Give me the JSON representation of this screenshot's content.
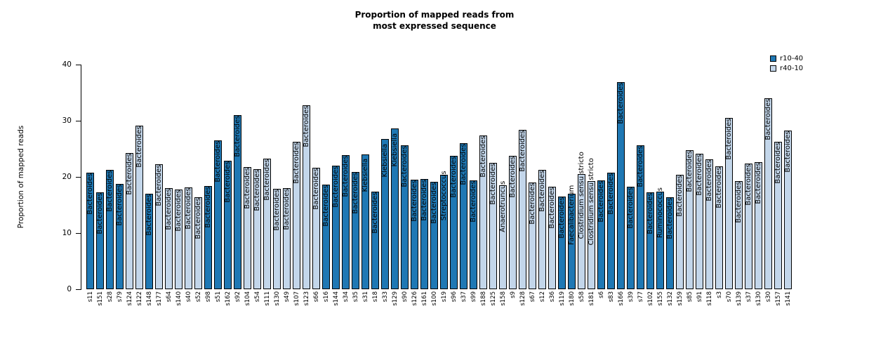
{
  "title": {
    "line1": "Proportion of mapped reads from",
    "line2": "most expressed sequence"
  },
  "y_axis": {
    "label": "Proportion of mapped reads",
    "ticks": [
      0,
      10,
      20,
      30,
      40
    ],
    "min": 0,
    "max": 40
  },
  "legend": {
    "items": [
      {
        "label": "r10-40",
        "color": "#1f78b4"
      },
      {
        "label": "r40-10",
        "color": "#c3d6ea"
      }
    ]
  },
  "chart_data": {
    "type": "bar",
    "title": "Proportion of mapped reads from most expressed sequence",
    "ylabel": "Proportion of mapped reads",
    "ylim": [
      0,
      40
    ],
    "grid": false,
    "legend_position": "top-right",
    "series_colors": {
      "r10-40": "#1f78b4",
      "r40-10": "#c3d6ea"
    },
    "bars": [
      {
        "sample": "s11",
        "value": 20.7,
        "group": "r10-40",
        "taxon": "Bacteroides"
      },
      {
        "sample": "s151",
        "value": 17.2,
        "group": "r10-40",
        "taxon": "Bacteroides"
      },
      {
        "sample": "s28",
        "value": 21.2,
        "group": "r10-40",
        "taxon": "Bacteroides"
      },
      {
        "sample": "s79",
        "value": 18.8,
        "group": "r10-40",
        "taxon": "Bacteroides"
      },
      {
        "sample": "s124",
        "value": 24.2,
        "group": "r40-10",
        "taxon": "Bacteroides"
      },
      {
        "sample": "s122",
        "value": 29.1,
        "group": "r40-10",
        "taxon": "Bacteroides"
      },
      {
        "sample": "s148",
        "value": 17.0,
        "group": "r10-40",
        "taxon": "Bacteroides"
      },
      {
        "sample": "s177",
        "value": 22.3,
        "group": "r40-10",
        "taxon": "Bacteroides"
      },
      {
        "sample": "s64",
        "value": 18.0,
        "group": "r40-10",
        "taxon": "Bacteroides"
      },
      {
        "sample": "s140",
        "value": 17.8,
        "group": "r40-10",
        "taxon": "Bacteroides"
      },
      {
        "sample": "s40",
        "value": 18.1,
        "group": "r40-10",
        "taxon": "Bacteroides"
      },
      {
        "sample": "s52",
        "value": 16.4,
        "group": "r40-10",
        "taxon": "Bacteroides"
      },
      {
        "sample": "s98",
        "value": 18.4,
        "group": "r10-40",
        "taxon": "Bacteroides"
      },
      {
        "sample": "s51",
        "value": 26.5,
        "group": "r10-40",
        "taxon": "Bacteroides"
      },
      {
        "sample": "s162",
        "value": 22.9,
        "group": "r10-40",
        "taxon": "Bacteroides"
      },
      {
        "sample": "s92",
        "value": 31.0,
        "group": "r10-40",
        "taxon": "Bacteroides"
      },
      {
        "sample": "s104",
        "value": 21.8,
        "group": "r40-10",
        "taxon": "Bacteroides"
      },
      {
        "sample": "s54",
        "value": 21.4,
        "group": "r40-10",
        "taxon": "Bacteroides"
      },
      {
        "sample": "s111",
        "value": 23.3,
        "group": "r40-10",
        "taxon": "Bacteroides"
      },
      {
        "sample": "s130",
        "value": 17.9,
        "group": "r40-10",
        "taxon": "Bacteroides"
      },
      {
        "sample": "s49",
        "value": 18.0,
        "group": "r40-10",
        "taxon": "Bacteroides"
      },
      {
        "sample": "s107",
        "value": 26.2,
        "group": "r40-10",
        "taxon": "Bacteroides"
      },
      {
        "sample": "s123",
        "value": 32.8,
        "group": "r40-10",
        "taxon": "Bacteroides"
      },
      {
        "sample": "s66",
        "value": 21.6,
        "group": "r40-10",
        "taxon": "Bacteroides"
      },
      {
        "sample": "s16",
        "value": 18.6,
        "group": "r10-40",
        "taxon": "Bacteroides"
      },
      {
        "sample": "s144",
        "value": 22.0,
        "group": "r10-40",
        "taxon": "Bacteroides"
      },
      {
        "sample": "s34",
        "value": 23.9,
        "group": "r10-40",
        "taxon": "Bacteroides"
      },
      {
        "sample": "s35",
        "value": 20.9,
        "group": "r10-40",
        "taxon": "Bacteroides"
      },
      {
        "sample": "s31",
        "value": 24.0,
        "group": "r10-40",
        "taxon": "Klebsiella"
      },
      {
        "sample": "s18",
        "value": 17.4,
        "group": "r10-40",
        "taxon": "Bacteroides"
      },
      {
        "sample": "s33",
        "value": 26.7,
        "group": "r10-40",
        "taxon": "Klebsiella"
      },
      {
        "sample": "s129",
        "value": 28.6,
        "group": "r10-40",
        "taxon": "Klebsiella"
      },
      {
        "sample": "s90",
        "value": 25.6,
        "group": "r10-40",
        "taxon": "Bacteroides"
      },
      {
        "sample": "s126",
        "value": 19.5,
        "group": "r10-40",
        "taxon": "Bacteroides"
      },
      {
        "sample": "s161",
        "value": 19.6,
        "group": "r10-40",
        "taxon": "Bacteroides"
      },
      {
        "sample": "s100",
        "value": 19.1,
        "group": "r10-40",
        "taxon": "Bacteroides"
      },
      {
        "sample": "s19",
        "value": 20.4,
        "group": "r10-40",
        "taxon": "Streptococcus"
      },
      {
        "sample": "s96",
        "value": 23.8,
        "group": "r10-40",
        "taxon": "Bacteroides"
      },
      {
        "sample": "s37",
        "value": 26.0,
        "group": "r10-40",
        "taxon": "Bacteroides"
      },
      {
        "sample": "s99",
        "value": 19.4,
        "group": "r10-40",
        "taxon": "Bacteroides"
      },
      {
        "sample": "s188",
        "value": 27.4,
        "group": "r40-10",
        "taxon": "Bacteroides"
      },
      {
        "sample": "s125",
        "value": 22.5,
        "group": "r40-10",
        "taxon": "Bacteroides"
      },
      {
        "sample": "s158",
        "value": 18.5,
        "group": "r40-10",
        "taxon": "Anaerotruncus"
      },
      {
        "sample": "s9",
        "value": 23.8,
        "group": "r40-10",
        "taxon": "Bacteroides"
      },
      {
        "sample": "s128",
        "value": 28.4,
        "group": "r40-10",
        "taxon": "Bacteroides"
      },
      {
        "sample": "s67",
        "value": 19.0,
        "group": "r40-10",
        "taxon": "Bacteroides"
      },
      {
        "sample": "s12",
        "value": 21.2,
        "group": "r40-10",
        "taxon": "Bacteroides"
      },
      {
        "sample": "s36",
        "value": 18.3,
        "group": "r40-10",
        "taxon": "Bacteroides"
      },
      {
        "sample": "s119",
        "value": 16.5,
        "group": "r10-40",
        "taxon": "Bacteroides"
      },
      {
        "sample": "s180",
        "value": 17.0,
        "group": "r10-40",
        "taxon": "Faecalibacterium"
      },
      {
        "sample": "s58",
        "value": 20.5,
        "group": "r40-10",
        "taxon": "Clostridium sensu stricto"
      },
      {
        "sample": "s181",
        "value": 19.3,
        "group": "r40-10",
        "taxon": "Clostridium sensu stricto"
      },
      {
        "sample": "s6",
        "value": 19.4,
        "group": "r10-40",
        "taxon": "Bacteroides"
      },
      {
        "sample": "s83",
        "value": 20.7,
        "group": "r10-40",
        "taxon": "Bacteroides"
      },
      {
        "sample": "s166",
        "value": 36.9,
        "group": "r10-40",
        "taxon": "Bacteroides"
      },
      {
        "sample": "s39",
        "value": 18.3,
        "group": "r10-40",
        "taxon": "Bacteroides"
      },
      {
        "sample": "s77",
        "value": 25.6,
        "group": "r10-40",
        "taxon": "Bacteroides"
      },
      {
        "sample": "s102",
        "value": 17.3,
        "group": "r10-40",
        "taxon": "Bacteroides"
      },
      {
        "sample": "s155",
        "value": 17.4,
        "group": "r10-40",
        "taxon": "Ruminococcus"
      },
      {
        "sample": "s132",
        "value": 16.4,
        "group": "r10-40",
        "taxon": "Bacteroides"
      },
      {
        "sample": "s159",
        "value": 20.4,
        "group": "r40-10",
        "taxon": "Bacteroides"
      },
      {
        "sample": "s85",
        "value": 24.8,
        "group": "r40-10",
        "taxon": "Bacteroides"
      },
      {
        "sample": "s91",
        "value": 24.1,
        "group": "r40-10",
        "taxon": "Bacteroides"
      },
      {
        "sample": "s118",
        "value": 23.1,
        "group": "r40-10",
        "taxon": "Bacteroides"
      },
      {
        "sample": "s3",
        "value": 21.9,
        "group": "r40-10",
        "taxon": "Bacteroides"
      },
      {
        "sample": "s70",
        "value": 30.5,
        "group": "r40-10",
        "taxon": "Bacteroides"
      },
      {
        "sample": "s139",
        "value": 19.2,
        "group": "r40-10",
        "taxon": "Bacteroides"
      },
      {
        "sample": "s37",
        "value": 22.4,
        "group": "r40-10",
        "taxon": "Bacteroides"
      },
      {
        "sample": "s130",
        "value": 22.6,
        "group": "r40-10",
        "taxon": "Bacteroides"
      },
      {
        "sample": "s30",
        "value": 34.0,
        "group": "r40-10",
        "taxon": "Bacteroides"
      },
      {
        "sample": "s157",
        "value": 26.3,
        "group": "r40-10",
        "taxon": "Bacteroides"
      },
      {
        "sample": "s141",
        "value": 28.3,
        "group": "r40-10",
        "taxon": "Bacteroides"
      }
    ]
  }
}
